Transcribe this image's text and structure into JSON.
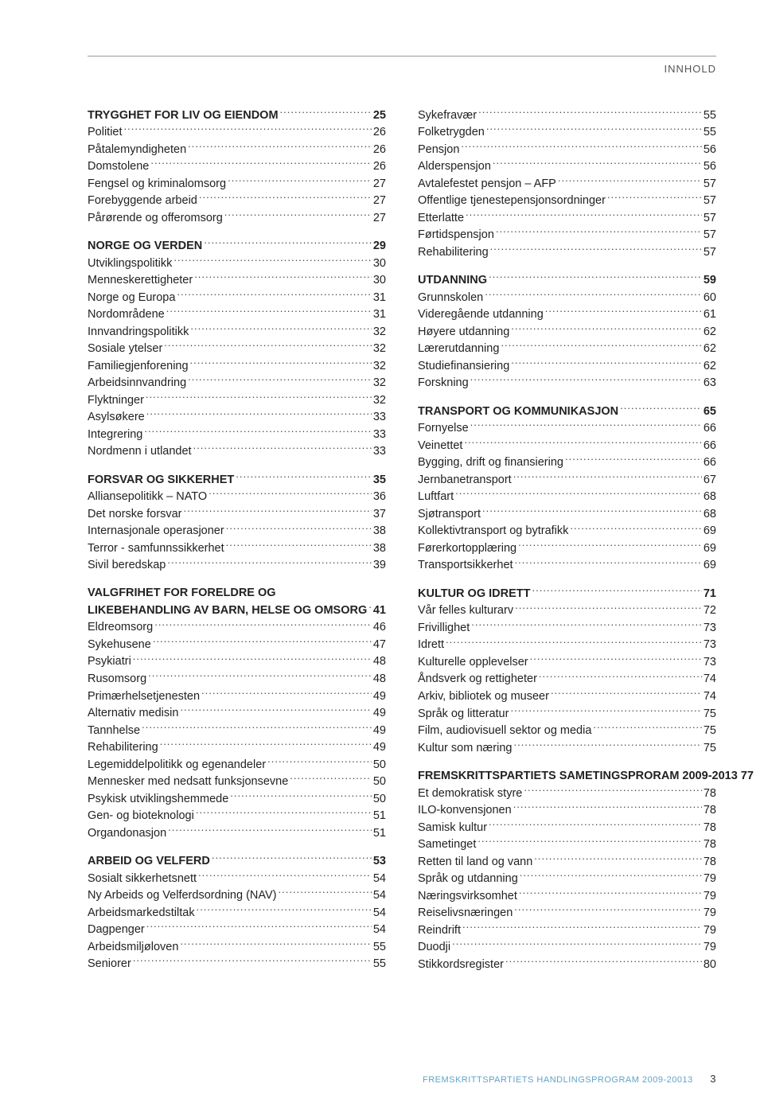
{
  "header": {
    "label": "INNHOLD"
  },
  "footer": {
    "text": "FREMSKRITTSPARTIETS HANDLINGSPROGRAM 2009-20013",
    "page": "3"
  },
  "left": [
    {
      "type": "section",
      "label": "TRYGGHET FOR LIV OG EIENDOM",
      "page": "25"
    },
    {
      "type": "item",
      "label": "Politiet",
      "page": "26"
    },
    {
      "type": "item",
      "label": "Påtalemyndigheten",
      "page": "26"
    },
    {
      "type": "item",
      "label": "Domstolene",
      "page": "26"
    },
    {
      "type": "item",
      "label": "Fengsel og kriminalomsorg",
      "page": "27"
    },
    {
      "type": "item",
      "label": "Forebyggende arbeid",
      "page": "27"
    },
    {
      "type": "item",
      "label": "Pårørende og offeromsorg",
      "page": "27"
    },
    {
      "type": "spacer"
    },
    {
      "type": "section",
      "label": "NORGE OG VERDEN",
      "page": "29"
    },
    {
      "type": "item",
      "label": "Utviklingspolitikk",
      "page": "30"
    },
    {
      "type": "item",
      "label": "Menneskerettigheter",
      "page": "30"
    },
    {
      "type": "item",
      "label": "Norge og Europa",
      "page": "31"
    },
    {
      "type": "item",
      "label": "Nordområdene",
      "page": "31"
    },
    {
      "type": "item",
      "label": "Innvandringspolitikk",
      "page": "32"
    },
    {
      "type": "item",
      "label": "Sosiale ytelser",
      "page": "32"
    },
    {
      "type": "item",
      "label": "Familiegjenforening",
      "page": "32"
    },
    {
      "type": "item",
      "label": "Arbeidsinnvandring",
      "page": "32"
    },
    {
      "type": "item",
      "label": "Flyktninger",
      "page": "32"
    },
    {
      "type": "item",
      "label": "Asylsøkere",
      "page": "33"
    },
    {
      "type": "item",
      "label": "Integrering",
      "page": "33"
    },
    {
      "type": "item",
      "label": "Nordmenn i utlandet",
      "page": "33"
    },
    {
      "type": "spacer"
    },
    {
      "type": "section",
      "label": "FORSVAR OG SIKKERHET",
      "page": "35"
    },
    {
      "type": "item",
      "label": "Alliansepolitikk – NATO",
      "page": "36"
    },
    {
      "type": "item",
      "label": "Det norske forsvar",
      "page": "37"
    },
    {
      "type": "item",
      "label": "Internasjonale operasjoner",
      "page": "38"
    },
    {
      "type": "item",
      "label": "Terror - samfunnssikkerhet",
      "page": "38"
    },
    {
      "type": "item",
      "label": "Sivil beredskap",
      "page": "39"
    },
    {
      "type": "spacer"
    },
    {
      "type": "section-noline",
      "label": "VALGFRIHET FOR FORELDRE  OG"
    },
    {
      "type": "section",
      "label": "LIKEBEHANDLING AV BARN, HELSE OG OMSORG",
      "page": "41"
    },
    {
      "type": "item",
      "label": "Eldreomsorg",
      "page": "46"
    },
    {
      "type": "item",
      "label": "Sykehusene",
      "page": "47"
    },
    {
      "type": "item",
      "label": "Psykiatri",
      "page": "48"
    },
    {
      "type": "item",
      "label": "Rusomsorg",
      "page": "48"
    },
    {
      "type": "item",
      "label": "Primærhelsetjenesten",
      "page": "49"
    },
    {
      "type": "item",
      "label": "Alternativ medisin",
      "page": "49"
    },
    {
      "type": "item",
      "label": "Tannhelse",
      "page": "49"
    },
    {
      "type": "item",
      "label": "Rehabilitering",
      "page": "49"
    },
    {
      "type": "item",
      "label": "Legemiddelpolitikk og egenandeler",
      "page": "50"
    },
    {
      "type": "item",
      "label": "Mennesker med nedsatt funksjonsevne",
      "page": "50"
    },
    {
      "type": "item",
      "label": "Psykisk utviklingshemmede",
      "page": "50"
    },
    {
      "type": "item",
      "label": "Gen- og bioteknologi",
      "page": "51"
    },
    {
      "type": "item",
      "label": "Organdonasjon",
      "page": "51"
    },
    {
      "type": "spacer"
    },
    {
      "type": "section",
      "label": "ARBEID OG VELFERD",
      "page": "53"
    },
    {
      "type": "item",
      "label": "Sosialt sikkerhetsnett",
      "page": "54"
    },
    {
      "type": "item",
      "label": "Ny Arbeids og Velferdsordning (NAV)",
      "page": "54"
    },
    {
      "type": "item",
      "label": "Arbeidsmarkedstiltak",
      "page": "54"
    },
    {
      "type": "item",
      "label": "Dagpenger",
      "page": "54"
    },
    {
      "type": "item",
      "label": "Arbeidsmiljøloven",
      "page": "55"
    },
    {
      "type": "item",
      "label": "Seniorer",
      "page": "55"
    }
  ],
  "right": [
    {
      "type": "item",
      "label": "Sykefravær",
      "page": "55"
    },
    {
      "type": "item",
      "label": "Folketrygden",
      "page": "55"
    },
    {
      "type": "item",
      "label": "Pensjon",
      "page": "56"
    },
    {
      "type": "item",
      "label": "Alderspensjon",
      "page": "56"
    },
    {
      "type": "item",
      "label": "Avtalefestet pensjon – AFP",
      "page": "57"
    },
    {
      "type": "item",
      "label": "Offentlige tjenestepensjonsordninger",
      "page": "57"
    },
    {
      "type": "item",
      "label": "Etterlatte",
      "page": "57"
    },
    {
      "type": "item",
      "label": "Førtidspensjon",
      "page": "57"
    },
    {
      "type": "item",
      "label": "Rehabilitering",
      "page": "57"
    },
    {
      "type": "spacer"
    },
    {
      "type": "section",
      "label": "UTDANNING",
      "page": "59"
    },
    {
      "type": "item",
      "label": "Grunnskolen",
      "page": "60"
    },
    {
      "type": "item",
      "label": "Videregående utdanning",
      "page": "61"
    },
    {
      "type": "item",
      "label": "Høyere utdanning",
      "page": "62"
    },
    {
      "type": "item",
      "label": "Lærerutdanning",
      "page": "62"
    },
    {
      "type": "item",
      "label": "Studiefinansiering",
      "page": "62"
    },
    {
      "type": "item",
      "label": "Forskning",
      "page": "63"
    },
    {
      "type": "spacer"
    },
    {
      "type": "section",
      "label": "TRANSPORT OG KOMMUNIKASJON",
      "page": "65"
    },
    {
      "type": "item",
      "label": "Fornyelse",
      "page": "66"
    },
    {
      "type": "item",
      "label": "Veinettet",
      "page": "66"
    },
    {
      "type": "item",
      "label": "Bygging, drift og finansiering",
      "page": "66"
    },
    {
      "type": "item",
      "label": "Jernbanetransport",
      "page": "67"
    },
    {
      "type": "item",
      "label": "Luftfart",
      "page": "68"
    },
    {
      "type": "item",
      "label": "Sjøtransport",
      "page": "68"
    },
    {
      "type": "item",
      "label": "Kollektivtransport og bytrafikk",
      "page": "69"
    },
    {
      "type": "item",
      "label": "Førerkortopplæring",
      "page": "69"
    },
    {
      "type": "item",
      "label": "Transportsikkerhet",
      "page": "69"
    },
    {
      "type": "spacer"
    },
    {
      "type": "section",
      "label": "KULTUR OG IDRETT",
      "page": "71"
    },
    {
      "type": "item",
      "label": "Vår felles kulturarv",
      "page": "72"
    },
    {
      "type": "item",
      "label": "Frivillighet",
      "page": "73"
    },
    {
      "type": "item",
      "label": "Idrett",
      "page": "73"
    },
    {
      "type": "item",
      "label": "Kulturelle opplevelser",
      "page": "73"
    },
    {
      "type": "item",
      "label": "Åndsverk og rettigheter",
      "page": "74"
    },
    {
      "type": "item",
      "label": "Arkiv, bibliotek og museer",
      "page": "74"
    },
    {
      "type": "item",
      "label": "Språk og litteratur",
      "page": "75"
    },
    {
      "type": "item",
      "label": "Film, audiovisuell sektor og media",
      "page": "75"
    },
    {
      "type": "item",
      "label": "Kultur som næring",
      "page": "75"
    },
    {
      "type": "spacer"
    },
    {
      "type": "section",
      "label": "FREMSKRITTSPARTIETS SAMETINGSPRORAM 2009-2013",
      "page": "77"
    },
    {
      "type": "item",
      "label": "Et demokratisk styre",
      "page": "78"
    },
    {
      "type": "item",
      "label": "ILO-konvensjonen",
      "page": "78"
    },
    {
      "type": "item",
      "label": "Samisk kultur",
      "page": "78"
    },
    {
      "type": "item",
      "label": "Sametinget",
      "page": "78"
    },
    {
      "type": "item",
      "label": "Retten til land og vann",
      "page": "78"
    },
    {
      "type": "item",
      "label": "Språk og utdanning",
      "page": "79"
    },
    {
      "type": "item",
      "label": "Næringsvirksomhet",
      "page": "79"
    },
    {
      "type": "item",
      "label": "Reiselivsnæringen",
      "page": "79"
    },
    {
      "type": "item",
      "label": "Reindrift",
      "page": "79"
    },
    {
      "type": "item",
      "label": "Duodji",
      "page": "79"
    },
    {
      "type": "item",
      "label": "Stikkordsregister",
      "page": "80"
    }
  ]
}
